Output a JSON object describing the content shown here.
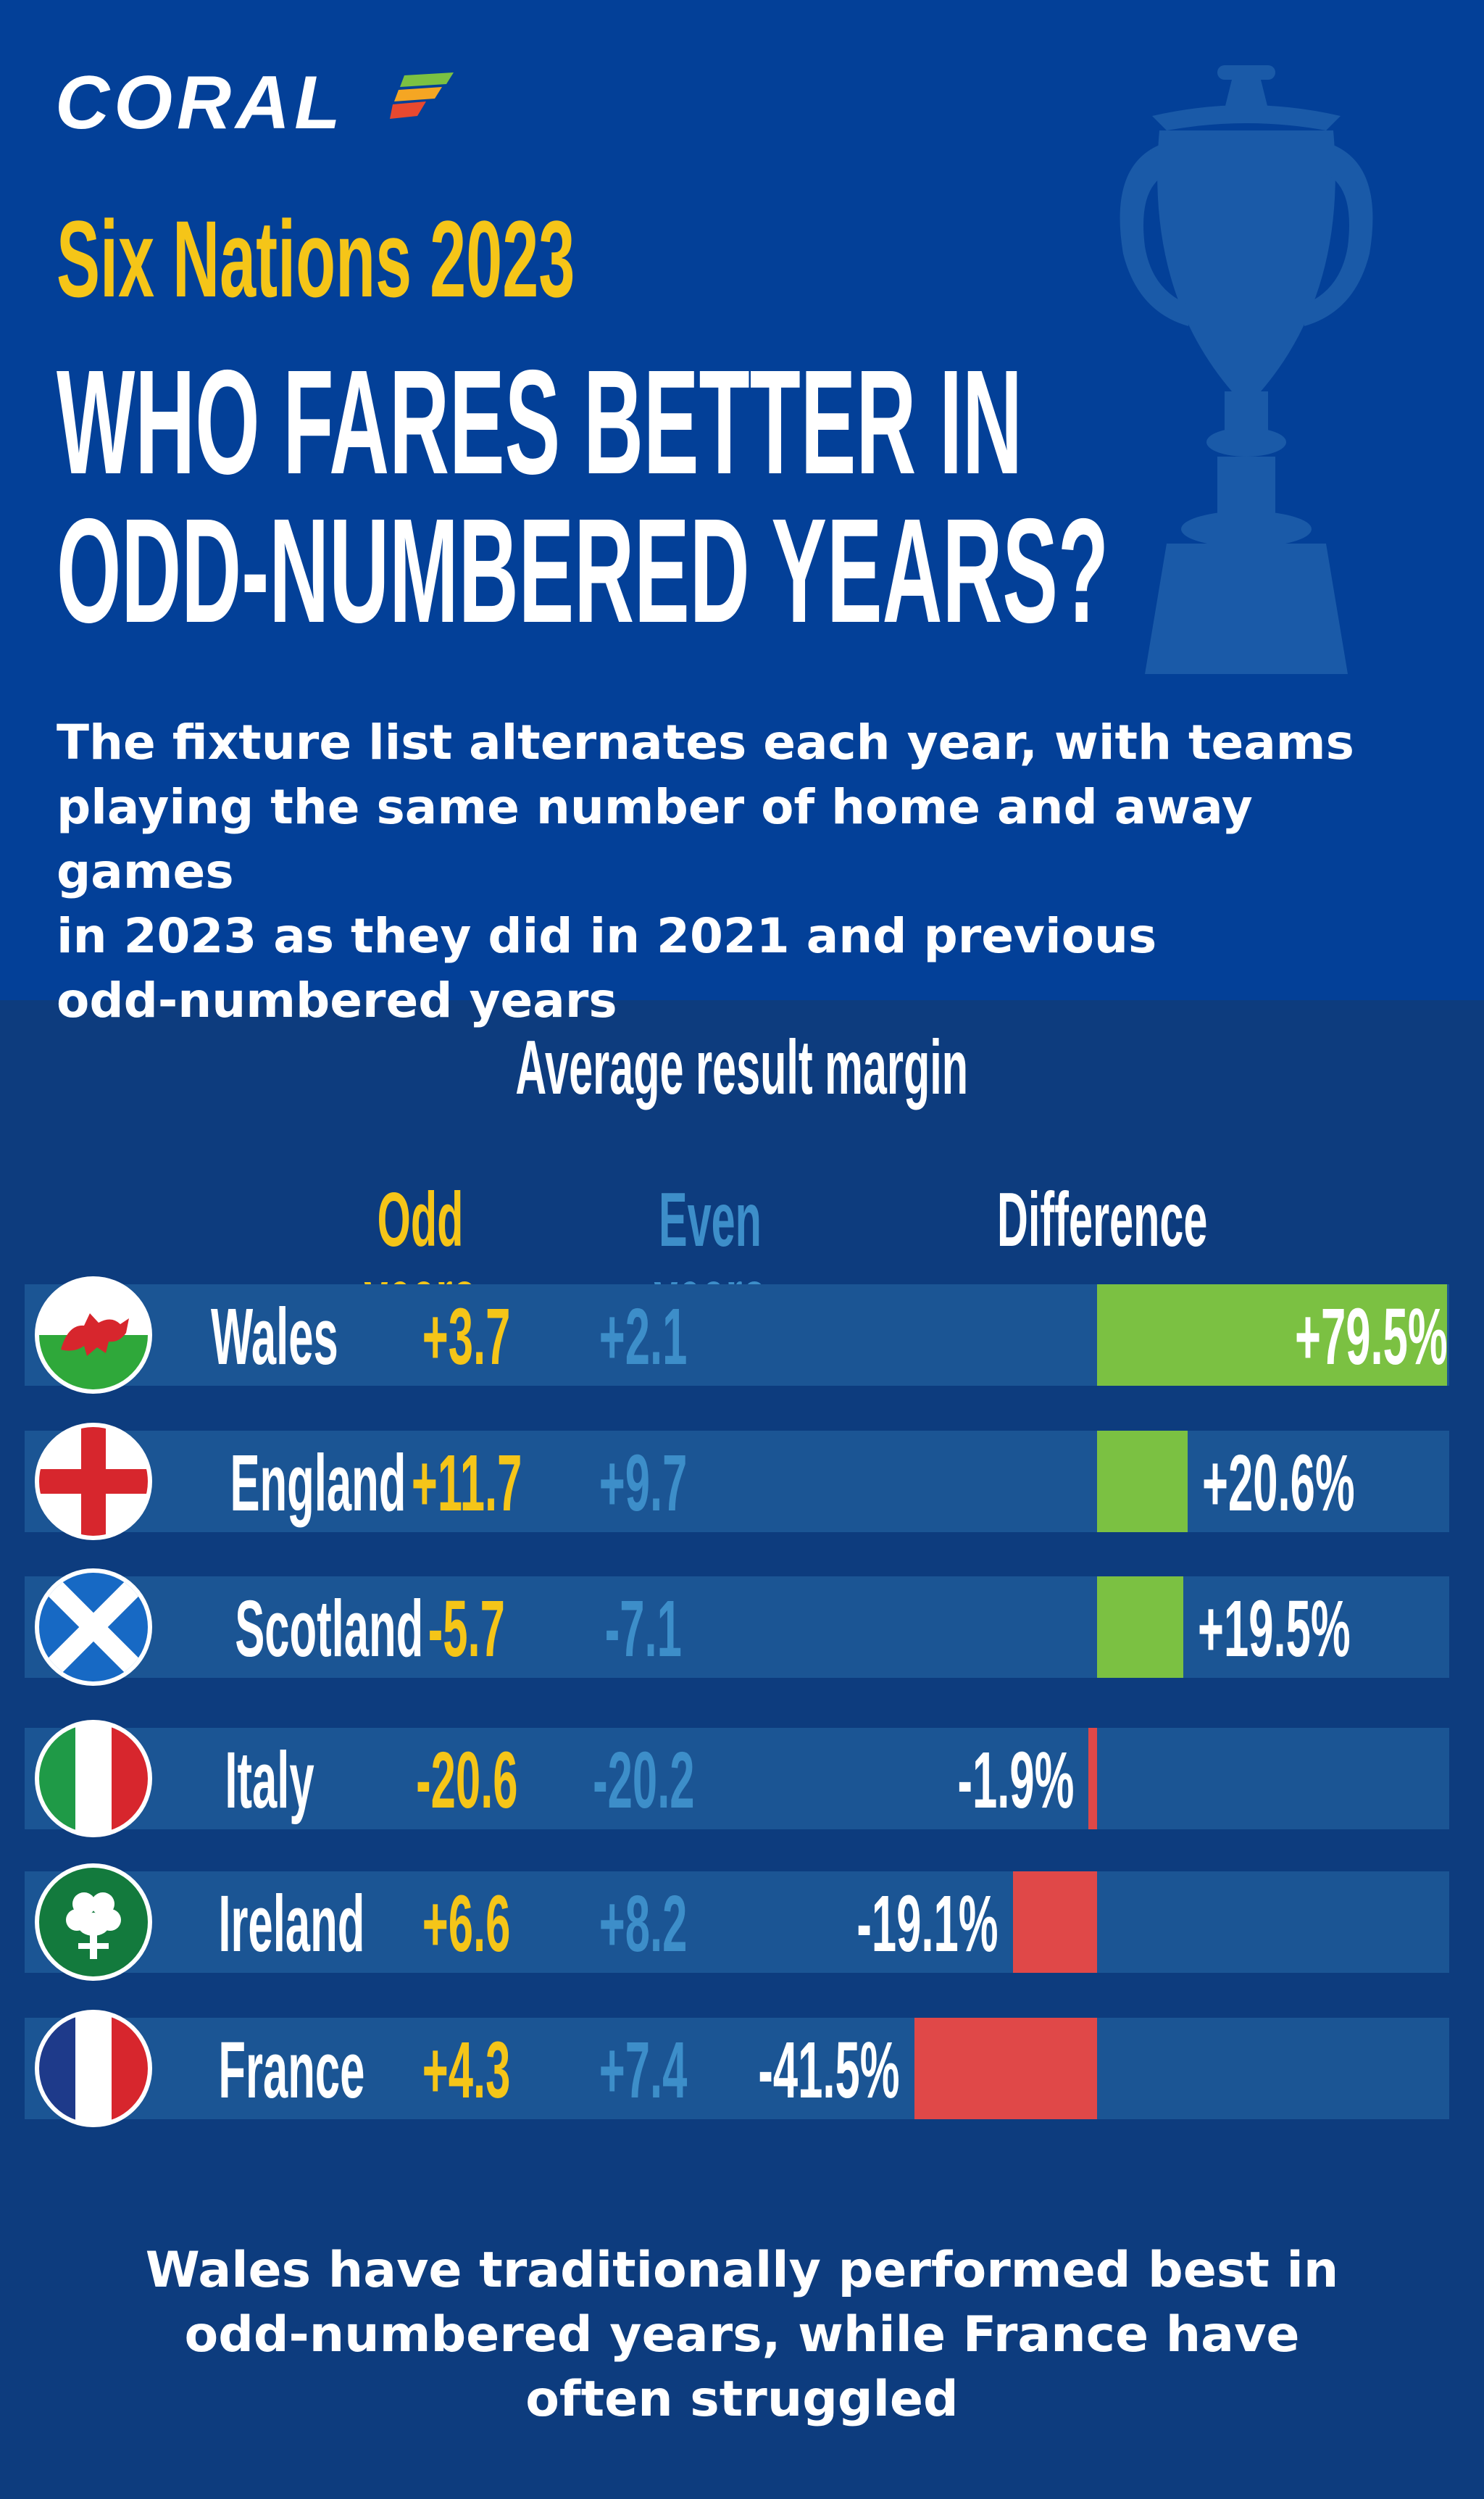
{
  "brand": {
    "logo_text": "CORAL"
  },
  "header": {
    "event": "Six Nations 2023",
    "headline_line1": "WHO FARES BETTER IN",
    "headline_line2": "ODD-NUMBERED YEARS?",
    "subtitle_lines": [
      "The fixture list alternates each year, with teams",
      "playing the same number of home and away games",
      "in 2023 as they did in 2021 and previous",
      "odd-numbered years"
    ]
  },
  "chart_data": {
    "type": "table",
    "title": "Average result margin",
    "columns": [
      "Odd years",
      "Even years",
      "Difference"
    ],
    "rows": [
      {
        "team": "Wales",
        "flag": "wales-flag-icon",
        "odd": "+3.7",
        "even": "+2.1",
        "difference": "+79.5%",
        "difference_value": 79.5
      },
      {
        "team": "England",
        "flag": "england-flag-icon",
        "odd": "+11.7",
        "even": "+9.7",
        "difference": "+20.6%",
        "difference_value": 20.6
      },
      {
        "team": "Scotland",
        "flag": "scotland-flag-icon",
        "odd": "-5.7",
        "even": "-7.1",
        "difference": "+19.5%",
        "difference_value": 19.5
      },
      {
        "team": "Italy",
        "flag": "italy-flag-icon",
        "odd": "-20.6",
        "even": "-20.2",
        "difference": "-1.9%",
        "difference_value": -1.9
      },
      {
        "team": "Ireland",
        "flag": "ireland-flag-icon",
        "odd": "+6.6",
        "even": "+8.2",
        "difference": "-19.1%",
        "difference_value": -19.1
      },
      {
        "team": "France",
        "flag": "france-flag-icon",
        "odd": "+4.3",
        "even": "+7.4",
        "difference": "-41.5%",
        "difference_value": -41.5
      }
    ],
    "colors": {
      "positive": "#7bc142",
      "negative": "#e04848",
      "odd": "#f5c518",
      "even": "#3d8ec9",
      "band": "#1b5594"
    }
  },
  "footer": {
    "lines": [
      "Wales have traditionally performed best in",
      "odd-numbered years, while France have",
      "often struggled"
    ]
  }
}
